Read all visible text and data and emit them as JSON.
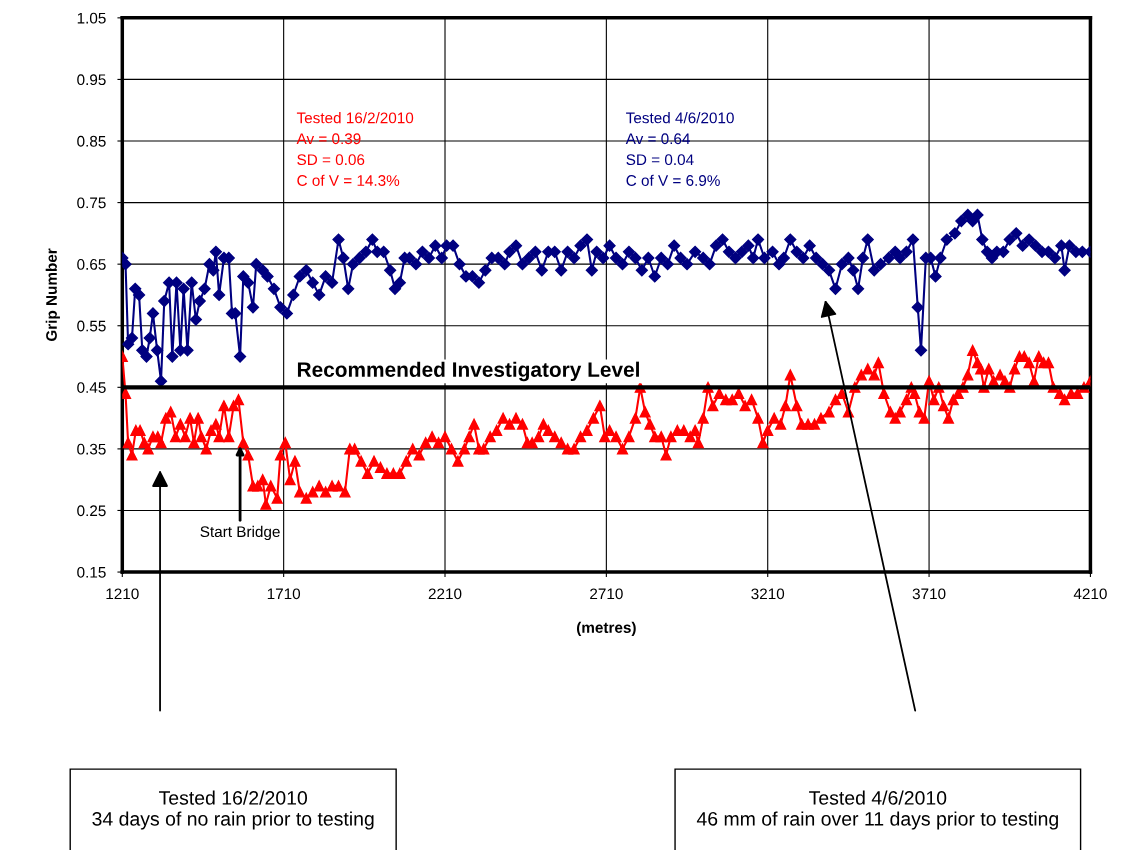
{
  "chart_data": {
    "type": "line",
    "ylabel": "Grip Number",
    "xlabel": "(metres)",
    "xlim": [
      1210,
      4210
    ],
    "xticks": [
      1210,
      1710,
      2210,
      2710,
      3210,
      3710,
      4210
    ],
    "ylim": [
      0.15,
      1.05
    ],
    "yticks": [
      0.15,
      0.25,
      0.35,
      0.45,
      0.55,
      0.65,
      0.75,
      0.85,
      0.95,
      1.05
    ],
    "grid": true,
    "line_style": "solid",
    "series": [
      {
        "color": "#000080",
        "marker": "diamond",
        "x": [
          1210,
          1220,
          1228,
          1240,
          1250,
          1262,
          1272,
          1285,
          1295,
          1305,
          1318,
          1330,
          1340,
          1355,
          1365,
          1378,
          1390,
          1400,
          1412,
          1425,
          1438,
          1450,
          1465,
          1480,
          1492,
          1500,
          1510,
          1525,
          1540,
          1550,
          1560,
          1575,
          1585,
          1600,
          1615,
          1625,
          1645,
          1660,
          1680,
          1700,
          1720,
          1740,
          1760,
          1780,
          1800,
          1820,
          1840,
          1860,
          1880,
          1895,
          1910,
          1925,
          1945,
          1965,
          1985,
          2000,
          2020,
          2040,
          2055,
          2070,
          2085,
          2100,
          2120,
          2140,
          2160,
          2180,
          2200,
          2215,
          2235,
          2255,
          2275,
          2295,
          2315,
          2335,
          2355,
          2375,
          2395,
          2410,
          2430,
          2450,
          2470,
          2490,
          2510,
          2530,
          2550,
          2570,
          2590,
          2610,
          2630,
          2650,
          2665,
          2680,
          2700,
          2720,
          2740,
          2760,
          2780,
          2800,
          2820,
          2840,
          2860,
          2880,
          2900,
          2920,
          2940,
          2960,
          2985,
          3010,
          3030,
          3050,
          3070,
          3090,
          3110,
          3130,
          3150,
          3165,
          3180,
          3200,
          3225,
          3245,
          3260,
          3280,
          3300,
          3320,
          3340,
          3360,
          3380,
          3400,
          3420,
          3440,
          3460,
          3475,
          3490,
          3505,
          3520,
          3540,
          3560,
          3585,
          3605,
          3620,
          3640,
          3660,
          3675,
          3685,
          3700,
          3715,
          3730,
          3745,
          3765,
          3790,
          3810,
          3830,
          3845,
          3860,
          3875,
          3890,
          3905,
          3920,
          3940,
          3960,
          3980,
          4000,
          4020,
          4040,
          4060,
          4080,
          4100,
          4120,
          4130,
          4145,
          4165,
          4185,
          4210
        ],
        "values": [
          0.66,
          0.65,
          0.52,
          0.53,
          0.61,
          0.6,
          0.51,
          0.5,
          0.53,
          0.57,
          0.51,
          0.46,
          0.59,
          0.62,
          0.5,
          0.62,
          0.51,
          0.61,
          0.51,
          0.62,
          0.56,
          0.59,
          0.61,
          0.65,
          0.64,
          0.67,
          0.6,
          0.66,
          0.66,
          0.57,
          0.57,
          0.5,
          0.63,
          0.62,
          0.58,
          0.65,
          0.64,
          0.63,
          0.61,
          0.58,
          0.57,
          0.6,
          0.63,
          0.64,
          0.62,
          0.6,
          0.63,
          0.62,
          0.69,
          0.66,
          0.61,
          0.65,
          0.66,
          0.67,
          0.69,
          0.67,
          0.67,
          0.64,
          0.61,
          0.62,
          0.66,
          0.66,
          0.65,
          0.67,
          0.66,
          0.68,
          0.66,
          0.68,
          0.68,
          0.65,
          0.63,
          0.63,
          0.62,
          0.64,
          0.66,
          0.66,
          0.65,
          0.67,
          0.68,
          0.65,
          0.66,
          0.67,
          0.64,
          0.67,
          0.67,
          0.64,
          0.67,
          0.66,
          0.68,
          0.69,
          0.64,
          0.67,
          0.66,
          0.68,
          0.66,
          0.65,
          0.67,
          0.66,
          0.64,
          0.66,
          0.63,
          0.66,
          0.65,
          0.68,
          0.66,
          0.65,
          0.67,
          0.66,
          0.65,
          0.68,
          0.69,
          0.67,
          0.66,
          0.67,
          0.68,
          0.66,
          0.69,
          0.66,
          0.67,
          0.65,
          0.66,
          0.69,
          0.67,
          0.66,
          0.68,
          0.66,
          0.65,
          0.64,
          0.61,
          0.65,
          0.66,
          0.64,
          0.61,
          0.66,
          0.69,
          0.64,
          0.65,
          0.66,
          0.67,
          0.66,
          0.67,
          0.69,
          0.58,
          0.51,
          0.66,
          0.66,
          0.63,
          0.66,
          0.69,
          0.7,
          0.72,
          0.73,
          0.72,
          0.73,
          0.69,
          0.67,
          0.66,
          0.67,
          0.67,
          0.69,
          0.7,
          0.68,
          0.69,
          0.68,
          0.67,
          0.67,
          0.66,
          0.68,
          0.64,
          0.68,
          0.67,
          0.67,
          0.67
        ]
      },
      {
        "color": "#ff0000",
        "marker": "triangle",
        "x": [
          1210,
          1220,
          1228,
          1240,
          1252,
          1265,
          1278,
          1290,
          1305,
          1320,
          1330,
          1345,
          1360,
          1375,
          1390,
          1405,
          1420,
          1432,
          1445,
          1455,
          1470,
          1485,
          1500,
          1510,
          1525,
          1540,
          1555,
          1570,
          1585,
          1600,
          1615,
          1630,
          1645,
          1655,
          1670,
          1690,
          1700,
          1715,
          1730,
          1745,
          1760,
          1780,
          1800,
          1820,
          1840,
          1860,
          1880,
          1900,
          1915,
          1930,
          1950,
          1970,
          1990,
          2010,
          2030,
          2050,
          2070,
          2090,
          2110,
          2130,
          2150,
          2170,
          2190,
          2210,
          2230,
          2250,
          2270,
          2285,
          2300,
          2315,
          2330,
          2350,
          2370,
          2390,
          2410,
          2430,
          2450,
          2465,
          2480,
          2500,
          2515,
          2530,
          2550,
          2570,
          2590,
          2610,
          2630,
          2650,
          2670,
          2690,
          2705,
          2720,
          2740,
          2760,
          2780,
          2800,
          2815,
          2830,
          2845,
          2860,
          2880,
          2895,
          2910,
          2930,
          2950,
          2970,
          2985,
          2995,
          3010,
          3025,
          3040,
          3060,
          3080,
          3100,
          3120,
          3140,
          3160,
          3180,
          3195,
          3210,
          3230,
          3250,
          3265,
          3280,
          3300,
          3315,
          3335,
          3355,
          3375,
          3400,
          3420,
          3440,
          3460,
          3480,
          3500,
          3520,
          3540,
          3553,
          3570,
          3590,
          3605,
          3620,
          3640,
          3655,
          3665,
          3680,
          3695,
          3710,
          3725,
          3740,
          3755,
          3770,
          3785,
          3800,
          3815,
          3830,
          3845,
          3860,
          3870,
          3880,
          3895,
          3910,
          3930,
          3945,
          3960,
          3975,
          3990,
          4005,
          4020,
          4035,
          4050,
          4065,
          4080,
          4095,
          4115,
          4130,
          4150,
          4170,
          4190,
          4210
        ],
        "values": [
          0.5,
          0.44,
          0.36,
          0.34,
          0.38,
          0.38,
          0.36,
          0.35,
          0.37,
          0.37,
          0.36,
          0.4,
          0.41,
          0.37,
          0.39,
          0.37,
          0.4,
          0.36,
          0.4,
          0.37,
          0.35,
          0.38,
          0.39,
          0.37,
          0.42,
          0.37,
          0.42,
          0.43,
          0.36,
          0.34,
          0.29,
          0.29,
          0.3,
          0.26,
          0.29,
          0.27,
          0.34,
          0.36,
          0.3,
          0.33,
          0.28,
          0.27,
          0.28,
          0.29,
          0.28,
          0.29,
          0.29,
          0.28,
          0.35,
          0.35,
          0.33,
          0.31,
          0.33,
          0.32,
          0.31,
          0.31,
          0.31,
          0.33,
          0.35,
          0.34,
          0.36,
          0.37,
          0.36,
          0.37,
          0.35,
          0.33,
          0.35,
          0.37,
          0.39,
          0.35,
          0.35,
          0.37,
          0.38,
          0.4,
          0.39,
          0.4,
          0.39,
          0.36,
          0.36,
          0.37,
          0.39,
          0.38,
          0.37,
          0.36,
          0.35,
          0.35,
          0.37,
          0.38,
          0.4,
          0.42,
          0.37,
          0.38,
          0.37,
          0.35,
          0.37,
          0.4,
          0.45,
          0.41,
          0.39,
          0.37,
          0.37,
          0.34,
          0.37,
          0.38,
          0.38,
          0.37,
          0.38,
          0.36,
          0.4,
          0.45,
          0.42,
          0.44,
          0.43,
          0.43,
          0.44,
          0.42,
          0.43,
          0.4,
          0.36,
          0.38,
          0.4,
          0.39,
          0.42,
          0.47,
          0.42,
          0.39,
          0.39,
          0.39,
          0.4,
          0.41,
          0.43,
          0.44,
          0.41,
          0.45,
          0.47,
          0.48,
          0.47,
          0.49,
          0.44,
          0.41,
          0.4,
          0.41,
          0.43,
          0.45,
          0.44,
          0.41,
          0.4,
          0.46,
          0.43,
          0.45,
          0.42,
          0.4,
          0.43,
          0.44,
          0.45,
          0.47,
          0.51,
          0.49,
          0.48,
          0.45,
          0.48,
          0.46,
          0.47,
          0.46,
          0.45,
          0.48,
          0.5,
          0.5,
          0.49,
          0.46,
          0.5,
          0.49,
          0.49,
          0.45,
          0.44,
          0.43,
          0.44,
          0.44,
          0.45,
          0.46
        ]
      }
    ],
    "ref_lines": [
      {
        "axis": "y",
        "value": 0.45,
        "label": "Recommended Investigatory Level",
        "color": "#000000",
        "line_style": "solid"
      }
    ],
    "annotations": [
      "Tested 16/2/2010\nAv = 0.39\nSD = 0.06\nC of V = 14.3%",
      "Tested 4/6/2010\nAv = 0.64\nSD = 0.04\nC of V = 6.9%",
      {
        "text": "Start Bridge",
        "x": 1575,
        "y": 0.355
      },
      "Tested 16/2/2010\n34 days of no rain prior to testing",
      "Tested 4/6/2010\n46 mm of rain over 11 days prior to testing"
    ]
  }
}
